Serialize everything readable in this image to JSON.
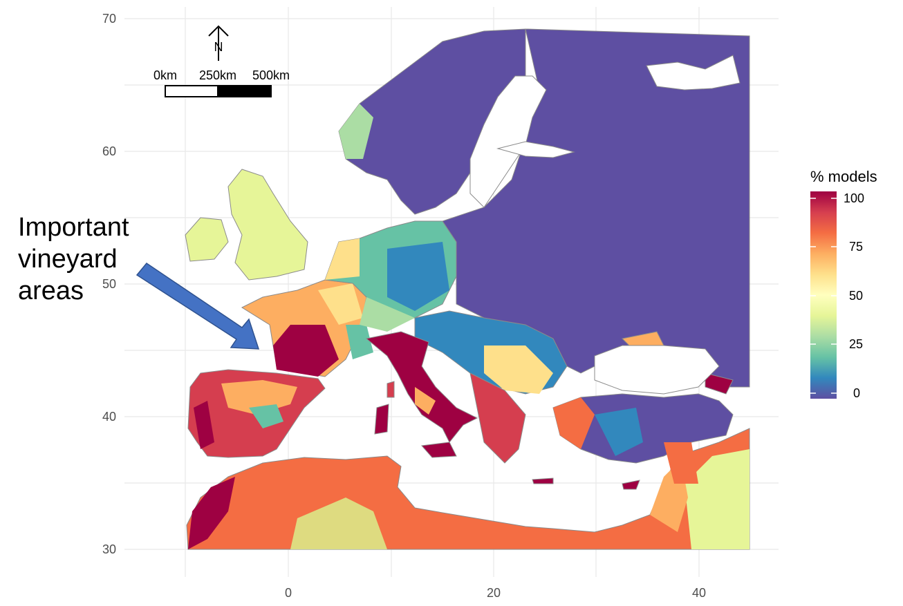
{
  "map": {
    "x_ticks": [
      "0",
      "20",
      "40"
    ],
    "y_ticks": [
      "70",
      "60",
      "50",
      "40",
      "30"
    ],
    "north_arrow_label": "N",
    "scale_bar": {
      "labels": [
        "0km",
        "250km",
        "500km"
      ]
    },
    "legend": {
      "title": "% models",
      "labels": [
        "100",
        "75",
        "50",
        "25",
        "0"
      ],
      "colors": [
        "#9e0142",
        "#d53e4f",
        "#f46d43",
        "#fdae61",
        "#fee08b",
        "#ffffbf",
        "#e6f598",
        "#abdda4",
        "#66c2a5",
        "#3288bd",
        "#5e4fa2"
      ]
    },
    "annotation": {
      "lines": [
        "Important",
        "vineyard",
        "areas"
      ],
      "arrow_color": "#4472c4"
    }
  }
}
